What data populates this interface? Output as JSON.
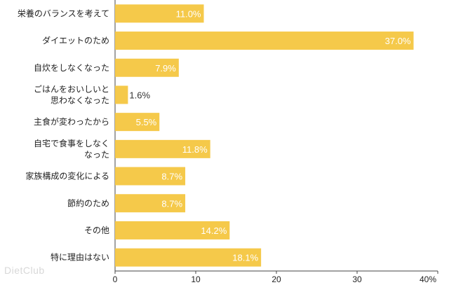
{
  "chart_data": {
    "type": "bar",
    "orientation": "horizontal",
    "categories": [
      "栄養のバランスを考えて",
      "ダイエットのため",
      "自炊をしなくなった",
      "ごはんをおいしいと\n思わなくなった",
      "主食が変わったから",
      "自宅で食事をしなく\nなった",
      "家族構成の変化による",
      "節約のため",
      "その他",
      "特に理由はない"
    ],
    "values": [
      11.0,
      37.0,
      7.9,
      1.6,
      5.5,
      11.8,
      8.7,
      8.7,
      14.2,
      18.1
    ],
    "value_labels": [
      "11.0%",
      "37.0%",
      "7.9%",
      "1.6%",
      "5.5%",
      "11.8%",
      "8.7%",
      "8.7%",
      "14.2%",
      "18.1%"
    ],
    "xlim": [
      0,
      40
    ],
    "xticks": [
      "0",
      "10",
      "20",
      "30",
      "40%"
    ],
    "bar_color": "#f5c94a",
    "grid": false
  },
  "watermark": "DietClub"
}
